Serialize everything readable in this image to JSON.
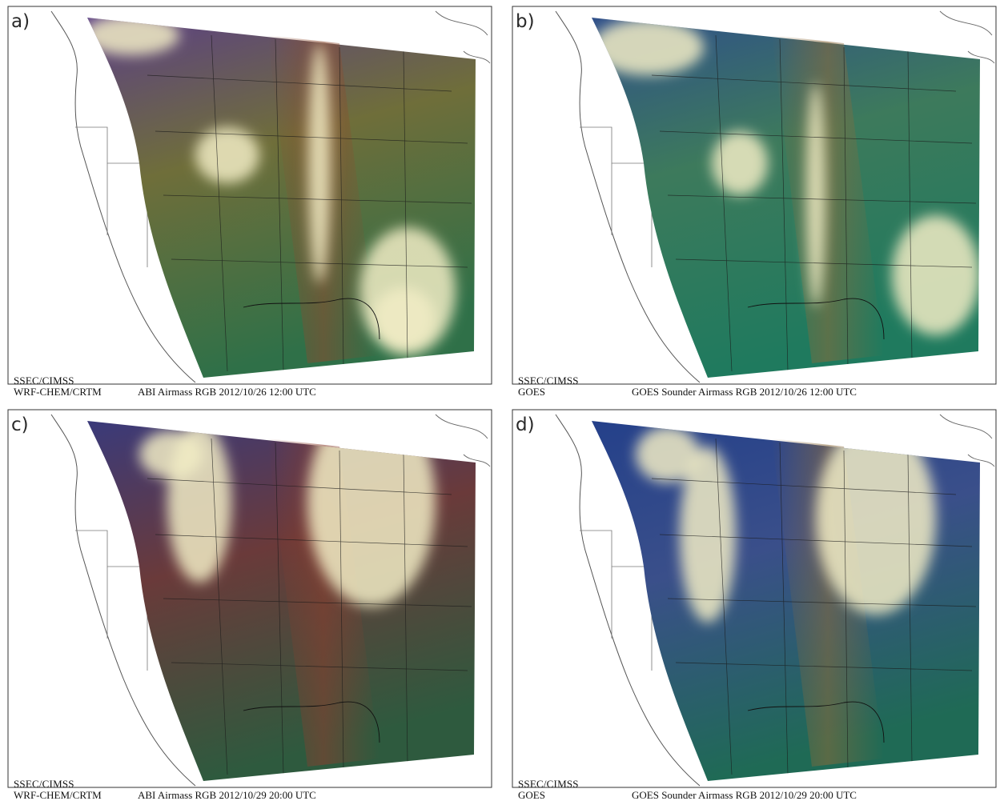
{
  "panels": [
    {
      "letter": "a)",
      "credit": "SSEC/CIMSS",
      "model": "WRF-CHEM/CRTM",
      "caption": "ABI Airmass RGB 2012/10/26 12:00 UTC",
      "colors": {
        "top": "#5b3f86",
        "mid": "#6f6e3a",
        "bottom": "#2f7048",
        "accent": "#8c4a2e"
      }
    },
    {
      "letter": "b)",
      "credit": "SSEC/CIMSS",
      "model": "GOES",
      "caption": "GOES Sounder Airmass RGB 2012/10/26 12:00 UTC",
      "colors": {
        "top": "#2f4f8a",
        "mid": "#3d7a5c",
        "bottom": "#1f7a5e",
        "accent": "#8c6a3a"
      }
    },
    {
      "letter": "c)",
      "credit": "SSEC/CIMSS",
      "model": "WRF-CHEM/CRTM",
      "caption": "ABI Airmass RGB 2012/10/29 20:00 UTC",
      "colors": {
        "top": "#3a3a7a",
        "mid": "#6a3a3a",
        "bottom": "#2e5a3e",
        "accent": "#8a3e2e"
      }
    },
    {
      "letter": "d)",
      "credit": "SSEC/CIMSS",
      "model": "GOES",
      "caption": "GOES Sounder Airmass RGB 2012/10/29 20:00 UTC",
      "colors": {
        "top": "#24408a",
        "mid": "#3a4f8a",
        "bottom": "#1f6a55",
        "accent": "#8a6a3a"
      }
    }
  ]
}
